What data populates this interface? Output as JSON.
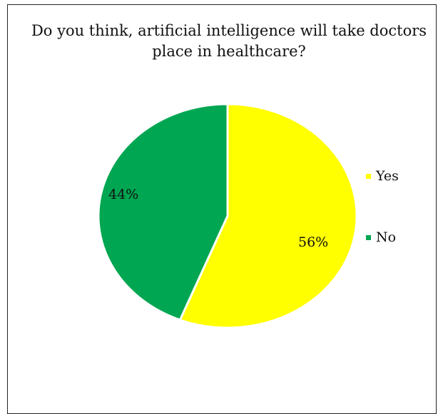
{
  "chart_data": {
    "type": "pie",
    "title": "Do you think, artificial intelligence will take doctors place in healthcare?",
    "categories": [
      "Yes",
      "No"
    ],
    "values": [
      56,
      44
    ],
    "data_labels": [
      "56%",
      "44%"
    ],
    "colors": [
      "#ffff00",
      "#00a651"
    ],
    "legend": {
      "placement": "right",
      "entries": [
        "Yes",
        "No"
      ]
    }
  }
}
